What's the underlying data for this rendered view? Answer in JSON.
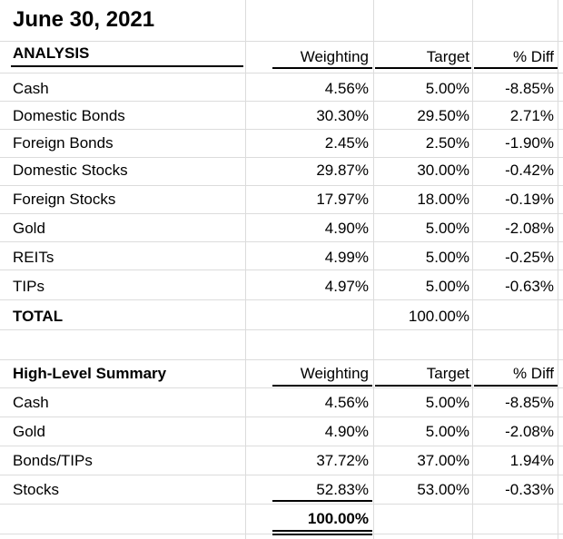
{
  "title": "June 30, 2021",
  "analysis": {
    "header": "ANALYSIS",
    "columns": [
      "Weighting",
      "Target",
      "% Diff"
    ],
    "rows": [
      {
        "label": "Cash",
        "weighting": "4.56%",
        "target": "5.00%",
        "diff": "-8.85%"
      },
      {
        "label": "Domestic Bonds",
        "weighting": "30.30%",
        "target": "29.50%",
        "diff": "2.71%"
      },
      {
        "label": "Foreign Bonds",
        "weighting": "2.45%",
        "target": "2.50%",
        "diff": "-1.90%"
      },
      {
        "label": "Domestic Stocks",
        "weighting": "29.87%",
        "target": "30.00%",
        "diff": "-0.42%"
      },
      {
        "label": "Foreign Stocks",
        "weighting": "17.97%",
        "target": "18.00%",
        "diff": "-0.19%"
      },
      {
        "label": "Gold",
        "weighting": "4.90%",
        "target": "5.00%",
        "diff": "-2.08%"
      },
      {
        "label": "REITs",
        "weighting": "4.99%",
        "target": "5.00%",
        "diff": "-0.25%"
      },
      {
        "label": "TIPs",
        "weighting": "4.97%",
        "target": "5.00%",
        "diff": "-0.63%"
      }
    ],
    "total_label": "TOTAL",
    "total_target": "100.00%"
  },
  "summary": {
    "header": "High-Level Summary",
    "columns": [
      "Weighting",
      "Target",
      "% Diff"
    ],
    "rows": [
      {
        "label": "Cash",
        "weighting": "4.56%",
        "target": "5.00%",
        "diff": "-8.85%"
      },
      {
        "label": "Gold",
        "weighting": "4.90%",
        "target": "5.00%",
        "diff": "-2.08%"
      },
      {
        "label": "Bonds/TIPs",
        "weighting": "37.72%",
        "target": "37.00%",
        "diff": "1.94%"
      },
      {
        "label": "Stocks",
        "weighting": "52.83%",
        "target": "53.00%",
        "diff": "-0.33%"
      }
    ],
    "total_weighting": "100.00%"
  }
}
